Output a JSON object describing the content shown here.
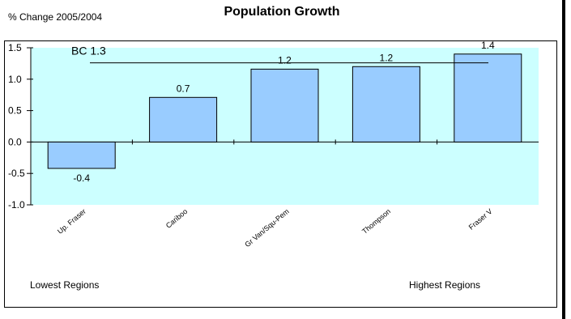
{
  "page": {
    "title": "Population Growth",
    "ylabel": "% Change 2005/2004",
    "footer_left": "Lowest Regions",
    "footer_right": "Highest Regions"
  },
  "colors": {
    "plot_background": "#CCFFFF",
    "bar_fill": "#99CCFF",
    "bar_stroke": "#000000",
    "axis": "#000000"
  },
  "chart_data": {
    "type": "bar",
    "title": "Population Growth",
    "xlabel": "",
    "ylabel": "% Change 2005/2004",
    "categories": [
      "Up. Fraser",
      "Cariboo",
      "Gr Van/Squ-Pem",
      "Thompson",
      "Fraser V"
    ],
    "values": [
      -0.42,
      0.71,
      1.16,
      1.2,
      1.4
    ],
    "data_labels": [
      "-0.4",
      "0.7",
      "1.2",
      "1.2",
      "1.4"
    ],
    "ylim": [
      -1.0,
      1.5
    ],
    "yticks": [
      1.5,
      1.0,
      0.5,
      0.0,
      -0.5,
      -1.0
    ],
    "ytick_labels": [
      "1.5",
      "1.0",
      "0.5",
      "0.0",
      "-0.5",
      "-1.0"
    ],
    "reference_line": {
      "label": "BC 1.3",
      "value": 1.26
    },
    "grid": false
  }
}
